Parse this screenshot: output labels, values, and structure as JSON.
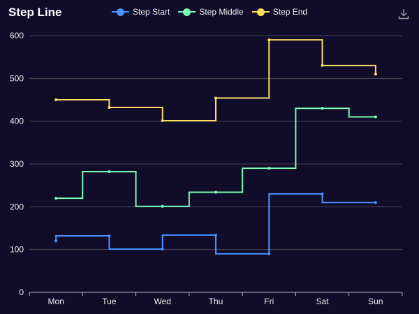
{
  "chart_data": {
    "type": "line",
    "title": "Step Line",
    "categories": [
      "Mon",
      "Tue",
      "Wed",
      "Thu",
      "Fri",
      "Sat",
      "Sun"
    ],
    "ylim": [
      0,
      600
    ],
    "yticks": [
      0,
      100,
      200,
      300,
      400,
      500,
      600
    ],
    "grid": true,
    "legend_position": "top-center",
    "series": [
      {
        "name": "Step Start",
        "step": "start",
        "color": "#4992ff",
        "values": [
          120,
          132,
          101,
          134,
          90,
          230,
          210
        ]
      },
      {
        "name": "Step Middle",
        "step": "middle",
        "color": "#7cffb2",
        "values": [
          220,
          282,
          201,
          234,
          290,
          430,
          410
        ]
      },
      {
        "name": "Step End",
        "step": "end",
        "color": "#fddd60",
        "values": [
          450,
          432,
          401,
          454,
          590,
          530,
          510
        ]
      }
    ]
  },
  "toolbar": {
    "download_icon": "download-icon"
  }
}
